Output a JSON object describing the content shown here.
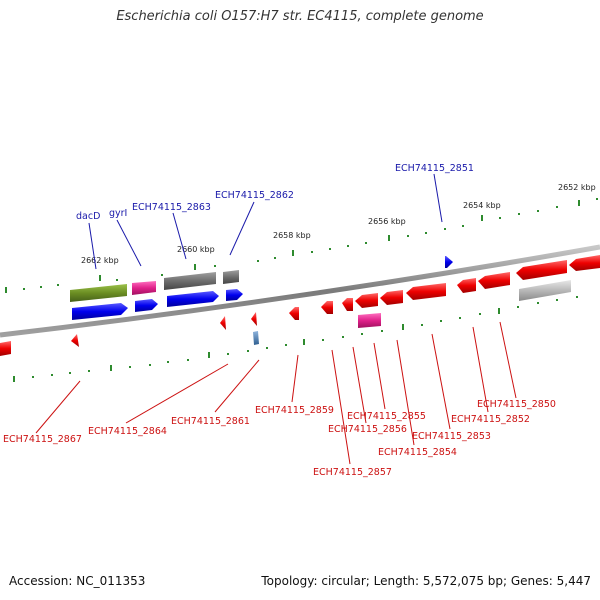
{
  "title": "Escherichia coli O157:H7 str. EC4115, complete genome",
  "footer": {
    "accession": "Accession: NC_011353",
    "topology": "Topology: circular; Length: 5,572,075 bp; Genes: 5,447"
  },
  "colors": {
    "backbone": "#8c8c8c",
    "forward_gene": "#0000ee",
    "reverse_gene": "#ee0000",
    "green_gene": "#6b8e23",
    "gray_gene": "#6e6e6e",
    "pink_gene": "#e0218a",
    "light_gray_gene": "#b8b8b8",
    "steel_gene": "#4682b4",
    "tick": "#2e8b2e",
    "label_blue": "#1a1aaa",
    "label_red": "#cc1111"
  },
  "ticks": [
    "2662 kbp",
    "2660 kbp",
    "2658 kbp",
    "2656 kbp",
    "2654 kbp",
    "2652 kbp"
  ],
  "labels_top": [
    "dacD",
    "gyrI",
    "ECH74115_2863",
    "ECH74115_2862",
    "ECH74115_2851"
  ],
  "labels_bottom": [
    "ECH74115_2867",
    "ECH74115_2864",
    "ECH74115_2861",
    "ECH74115_2859",
    "ECH74115_2857",
    "ECH74115_2856",
    "ECH74115_2855",
    "ECH74115_2854",
    "ECH74115_2853",
    "ECH74115_2852",
    "ECH74115_2850"
  ]
}
